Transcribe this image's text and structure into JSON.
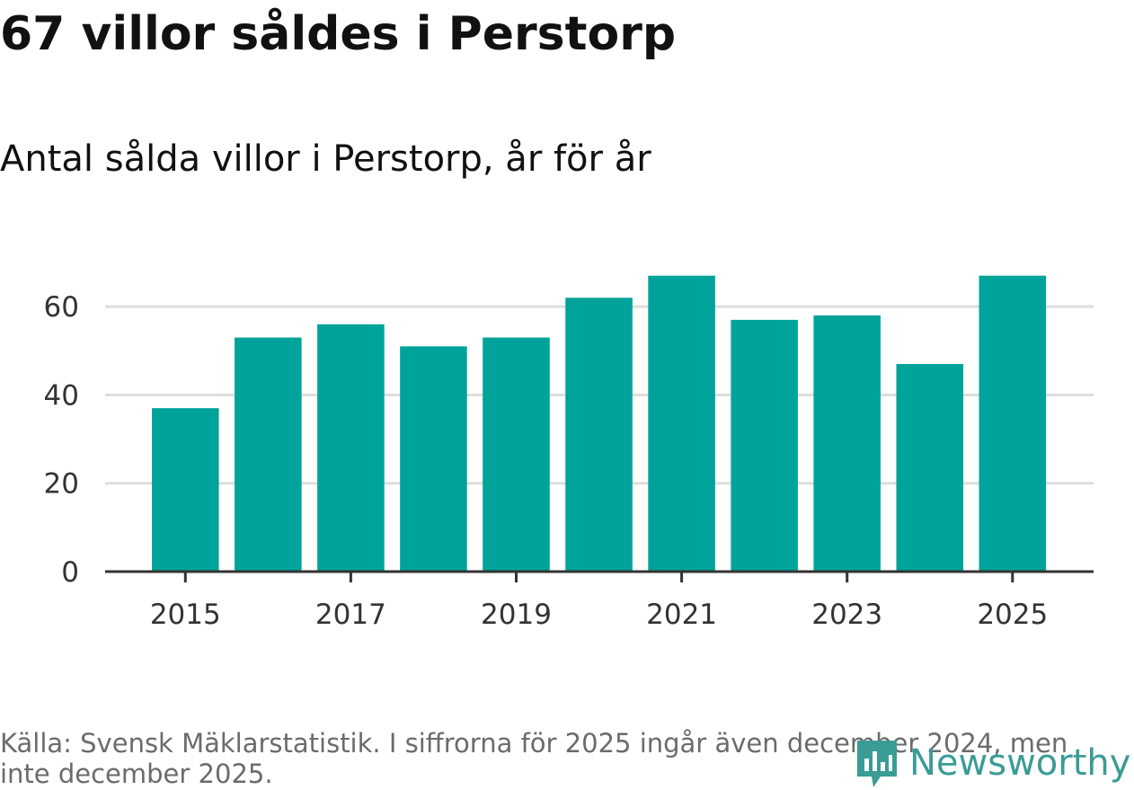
{
  "title": "67 villor såldes i Perstorp",
  "subtitle": "Antal sålda villor i Perstorp, år för år",
  "source": "Källa: Svensk Mäklarstatistik. I siffrorna för 2025 ingår även december 2024, men inte december 2025.",
  "logo_text": "Newsworthy",
  "colors": {
    "bar": "#00a39a",
    "grid": "#dddddd",
    "axis": "#333333",
    "logo": "#3a9c95"
  },
  "chart_data": {
    "type": "bar",
    "title": "Antal sålda villor i Perstorp, år för år",
    "xlabel": "",
    "ylabel": "",
    "categories": [
      "2015",
      "2016",
      "2017",
      "2018",
      "2019",
      "2020",
      "2021",
      "2022",
      "2023",
      "2024",
      "2025"
    ],
    "values": [
      37,
      53,
      56,
      51,
      53,
      62,
      67,
      57,
      58,
      47,
      67
    ],
    "x_tick_labels": [
      "2015",
      "2017",
      "2019",
      "2021",
      "2023",
      "2025"
    ],
    "y_ticks": [
      0,
      20,
      40,
      60
    ],
    "ylim": [
      0,
      70
    ],
    "grid": true
  }
}
